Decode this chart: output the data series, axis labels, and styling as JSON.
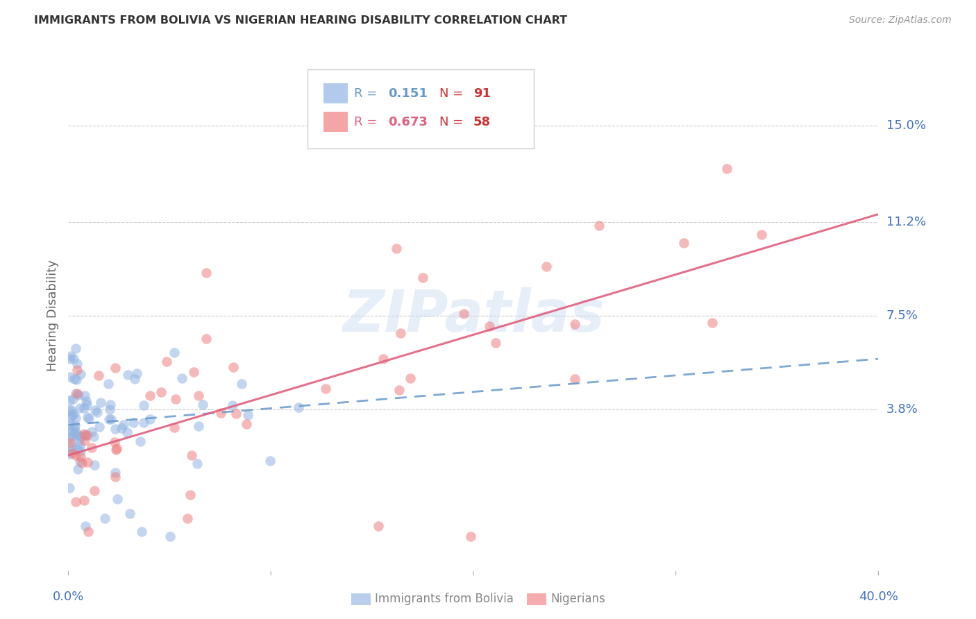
{
  "title": "IMMIGRANTS FROM BOLIVIA VS NIGERIAN HEARING DISABILITY CORRELATION CHART",
  "source": "Source: ZipAtlas.com",
  "ylabel": "Hearing Disability",
  "ytick_labels": [
    "15.0%",
    "11.2%",
    "7.5%",
    "3.8%"
  ],
  "ytick_values": [
    0.15,
    0.112,
    0.075,
    0.038
  ],
  "xlim": [
    0.0,
    0.4
  ],
  "ylim": [
    -0.025,
    0.175
  ],
  "bolivia_R": 0.151,
  "bolivia_N": 91,
  "nigerian_R": 0.673,
  "nigerian_N": 58,
  "bolivia_color": "#92b4e3",
  "nigerian_color": "#f08080",
  "bolivia_line_color": "#6699cc",
  "nigerian_line_color": "#e06080",
  "watermark": "ZIPatlas",
  "legend_labels": [
    "Immigrants from Bolivia",
    "Nigerians"
  ],
  "bolivia_line_x0": 0.0,
  "bolivia_line_y0": 0.032,
  "bolivia_line_x1": 0.4,
  "bolivia_line_y1": 0.058,
  "nigerian_line_x0": 0.0,
  "nigerian_line_y0": 0.02,
  "nigerian_line_x1": 0.4,
  "nigerian_line_y1": 0.115,
  "label_color": "#4472c4",
  "grid_color": "#cccccc",
  "title_color": "#333333",
  "source_color": "#999999",
  "ylabel_color": "#666666",
  "bottom_legend_color": "#888888"
}
